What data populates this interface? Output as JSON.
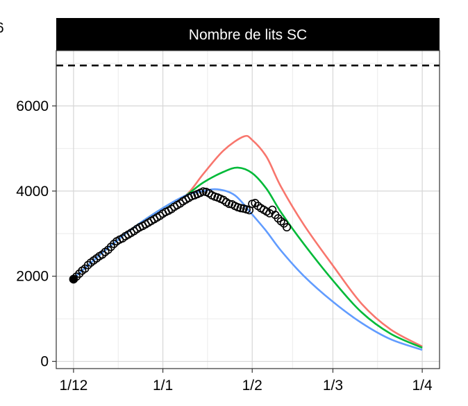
{
  "chart_data": {
    "type": "line",
    "title": "Nombre de lits SC",
    "xlabel": "",
    "ylabel": "",
    "x_tick_labels": [
      "1/12",
      "1/1",
      "1/2",
      "1/3",
      "1/4"
    ],
    "x_tick_days": [
      0,
      31,
      62,
      90,
      121
    ],
    "xlim_days": [
      -6,
      127
    ],
    "y_ticks": [
      0,
      2000,
      4000,
      6000
    ],
    "ylim": [
      -170,
      7300
    ],
    "grid": true,
    "legend": "none",
    "reference_line": {
      "value": 6950,
      "style": "dashed",
      "color": "#000000"
    },
    "series": [
      {
        "color": "#F8766D",
        "points": [
          [
            0,
            1950
          ],
          [
            10,
            2550
          ],
          [
            20,
            3100
          ],
          [
            31,
            3600
          ],
          [
            39,
            3900
          ],
          [
            45,
            4400
          ],
          [
            52,
            4950
          ],
          [
            59,
            5280
          ],
          [
            62,
            5200
          ],
          [
            67,
            4800
          ],
          [
            72,
            4100
          ],
          [
            80,
            3200
          ],
          [
            90,
            2250
          ],
          [
            100,
            1350
          ],
          [
            110,
            750
          ],
          [
            121,
            350
          ]
        ]
      },
      {
        "color": "#00BA38",
        "points": [
          [
            0,
            1950
          ],
          [
            10,
            2550
          ],
          [
            20,
            3100
          ],
          [
            31,
            3600
          ],
          [
            39,
            3900
          ],
          [
            45,
            4200
          ],
          [
            52,
            4450
          ],
          [
            57,
            4550
          ],
          [
            62,
            4420
          ],
          [
            67,
            4050
          ],
          [
            72,
            3500
          ],
          [
            80,
            2750
          ],
          [
            90,
            1900
          ],
          [
            100,
            1150
          ],
          [
            110,
            650
          ],
          [
            121,
            320
          ]
        ]
      },
      {
        "color": "#619CFF",
        "points": [
          [
            0,
            1950
          ],
          [
            10,
            2550
          ],
          [
            20,
            3100
          ],
          [
            31,
            3600
          ],
          [
            39,
            3900
          ],
          [
            45,
            4000
          ],
          [
            50,
            4040
          ],
          [
            56,
            3900
          ],
          [
            62,
            3450
          ],
          [
            67,
            3050
          ],
          [
            72,
            2600
          ],
          [
            80,
            2000
          ],
          [
            90,
            1400
          ],
          [
            100,
            900
          ],
          [
            110,
            520
          ],
          [
            121,
            270
          ]
        ]
      }
    ],
    "observed": {
      "marker": "open-circle",
      "points": [
        [
          0,
          1930
        ],
        [
          1,
          1990
        ],
        [
          2,
          2060
        ],
        [
          3,
          2130
        ],
        [
          4,
          2180
        ],
        [
          5,
          2260
        ],
        [
          6,
          2320
        ],
        [
          7,
          2370
        ],
        [
          8,
          2420
        ],
        [
          9,
          2470
        ],
        [
          10,
          2510
        ],
        [
          11,
          2570
        ],
        [
          12,
          2620
        ],
        [
          13,
          2690
        ],
        [
          14,
          2760
        ],
        [
          15,
          2820
        ],
        [
          16,
          2860
        ],
        [
          17,
          2890
        ],
        [
          18,
          2940
        ],
        [
          19,
          2980
        ],
        [
          20,
          3020
        ],
        [
          21,
          3060
        ],
        [
          22,
          3110
        ],
        [
          23,
          3150
        ],
        [
          24,
          3180
        ],
        [
          25,
          3220
        ],
        [
          26,
          3260
        ],
        [
          27,
          3300
        ],
        [
          28,
          3340
        ],
        [
          29,
          3380
        ],
        [
          30,
          3420
        ],
        [
          31,
          3470
        ],
        [
          32,
          3510
        ],
        [
          33,
          3540
        ],
        [
          34,
          3580
        ],
        [
          35,
          3630
        ],
        [
          36,
          3670
        ],
        [
          37,
          3710
        ],
        [
          38,
          3760
        ],
        [
          39,
          3800
        ],
        [
          40,
          3840
        ],
        [
          41,
          3880
        ],
        [
          42,
          3900
        ],
        [
          43,
          3930
        ],
        [
          44,
          3960
        ],
        [
          45,
          3990
        ],
        [
          46,
          3980
        ],
        [
          47,
          3950
        ],
        [
          48,
          3900
        ],
        [
          49,
          3870
        ],
        [
          50,
          3850
        ],
        [
          51,
          3820
        ],
        [
          52,
          3790
        ],
        [
          53,
          3740
        ],
        [
          54,
          3700
        ],
        [
          55,
          3690
        ],
        [
          56,
          3650
        ],
        [
          57,
          3620
        ],
        [
          58,
          3600
        ],
        [
          59,
          3590
        ],
        [
          60,
          3570
        ],
        [
          61,
          3550
        ],
        [
          62,
          3700
        ],
        [
          63,
          3720
        ],
        [
          64,
          3650
        ],
        [
          65,
          3600
        ],
        [
          66,
          3560
        ],
        [
          67,
          3520
        ],
        [
          68,
          3480
        ],
        [
          69,
          3560
        ],
        [
          70,
          3440
        ],
        [
          71,
          3360
        ],
        [
          72,
          3290
        ],
        [
          73,
          3240
        ],
        [
          74,
          3150
        ]
      ]
    }
  },
  "cropped_left_fragment": "6"
}
